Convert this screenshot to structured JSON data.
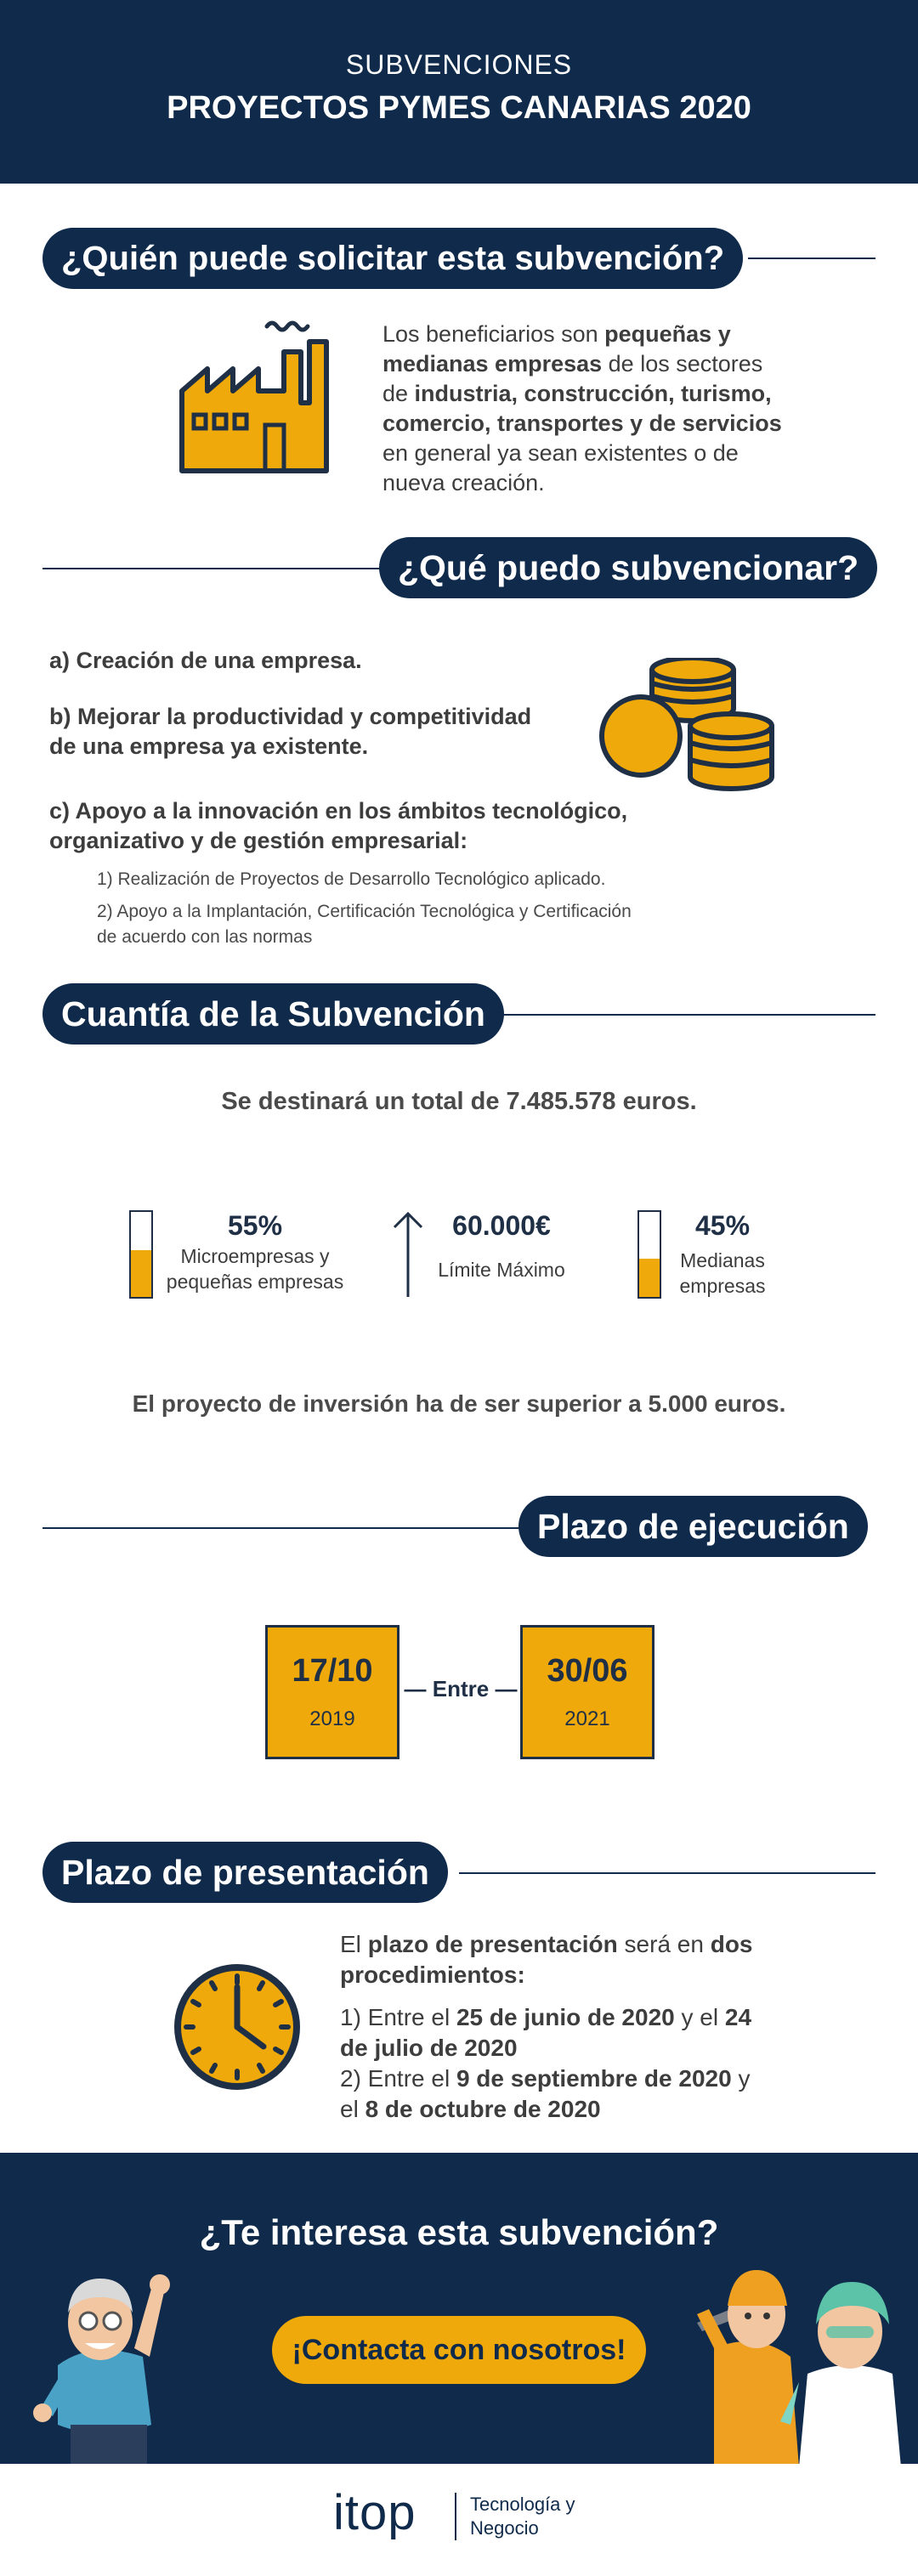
{
  "header": {
    "subtitle": "SUBVENCIONES",
    "title": "PROYECTOS PYMES CANARIAS 2020"
  },
  "sections": {
    "who": {
      "heading": "¿Quién puede solicitar esta subvención?",
      "lines": [
        [
          {
            "t": "Los beneficiarios son ",
            "b": false
          },
          {
            "t": "pequeñas y",
            "b": true
          }
        ],
        [
          {
            "t": "medianas empresas",
            "b": true
          },
          {
            "t": " de los sectores",
            "b": false
          }
        ],
        [
          {
            "t": "de ",
            "b": false
          },
          {
            "t": "industria, construcción, turismo,",
            "b": true
          }
        ],
        [
          {
            "t": "comercio, transportes y de servicios",
            "b": true
          }
        ],
        [
          {
            "t": "en general ya sean existentes o de",
            "b": false
          }
        ],
        [
          {
            "t": "nueva creación.",
            "b": false
          }
        ]
      ]
    },
    "what": {
      "heading": "¿Qué puedo subvencionar?",
      "a": "a) Creación de una empresa.",
      "b1": "b) Mejorar la productividad y competitividad",
      "b2": "de una empresa ya existente.",
      "c1": "c) Apoyo a la innovación en los ámbitos tecnológico,",
      "c2": "organizativo y de gestión empresarial:",
      "sub1": "1) Realización de Proyectos de Desarrollo Tecnológico aplicado.",
      "sub2a": "2) Apoyo a la Implantación, Certificación Tecnológica y Certificación",
      "sub2b": "de acuerdo con las normas"
    },
    "amount": {
      "heading": "Cuantía de la Subvención",
      "total": "Se destinará un total de 7.485.578 euros.",
      "stat1_value": "55%",
      "stat1_label1": "Microempresas y",
      "stat1_label2": "pequeñas empresas",
      "stat1_fill": 0.55,
      "stat2_value": "60.000€",
      "stat2_label": "Límite Máximo",
      "stat3_value": "45%",
      "stat3_label1": "Medianas",
      "stat3_label2": "empresas",
      "stat3_fill": 0.45,
      "minimum": "El proyecto de inversión ha de ser superior a 5.000 euros."
    },
    "execution": {
      "heading": "Plazo de ejecución",
      "start_day": "17/10",
      "start_year": "2019",
      "between": "— Entre —",
      "end_day": "30/06",
      "end_year": "2021"
    },
    "presentation": {
      "heading": "Plazo de presentación",
      "lines": [
        [
          {
            "t": "El ",
            "b": false
          },
          {
            "t": "plazo de presentación",
            "b": true
          },
          {
            "t": " será en ",
            "b": false
          },
          {
            "t": "dos",
            "b": true
          }
        ],
        [
          {
            "t": "procedimientos:",
            "b": true
          }
        ],
        [
          {
            "t": "",
            "b": false
          }
        ],
        [
          {
            "t": "1) Entre el ",
            "b": false
          },
          {
            "t": "25 de junio de 2020",
            "b": true
          },
          {
            "t": " y el ",
            "b": false
          },
          {
            "t": "24",
            "b": true
          }
        ],
        [
          {
            "t": "de julio de 2020",
            "b": true
          }
        ],
        [
          {
            "t": "2) Entre el ",
            "b": false
          },
          {
            "t": "9 de septiembre de 2020",
            "b": true
          },
          {
            "t": " y",
            "b": false
          }
        ],
        [
          {
            "t": "el ",
            "b": false
          },
          {
            "t": "8 de octubre de 2020",
            "b": true
          }
        ]
      ]
    }
  },
  "cta": {
    "question": "¿Te interesa esta subvención?",
    "button": "¡Contacta con nosotros!"
  },
  "footer": {
    "logo": "itop",
    "tagline1": "Tecnología y",
    "tagline2": "Negocio"
  },
  "colors": {
    "navy": "#0f2a4a",
    "accent": "#efa90a",
    "text": "#3d3d3d"
  },
  "icons": [
    "factory-icon",
    "coins-icon",
    "clock-icon",
    "arrow-up-icon"
  ]
}
